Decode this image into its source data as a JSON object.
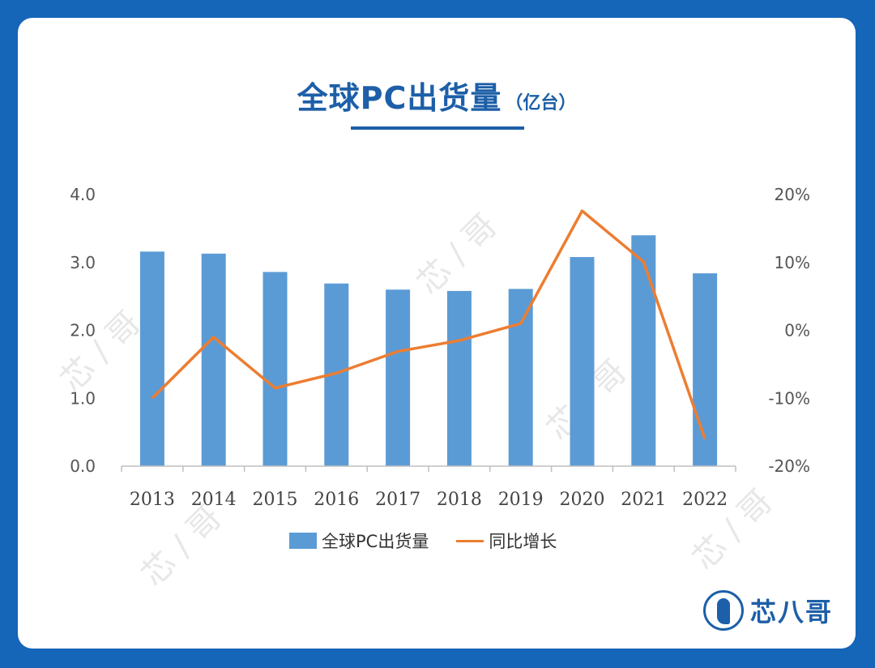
{
  "title": {
    "main": "全球PC出货量",
    "unit": "（亿台）"
  },
  "logo": {
    "text": "芯八哥"
  },
  "watermark": "芯八哥",
  "colors": {
    "background": "#1565b8",
    "bar": "#5b9bd5",
    "line": "#ed7d31",
    "title": "#1d5fa8"
  },
  "chart_data": {
    "type": "bar",
    "categories": [
      "2013",
      "2014",
      "2015",
      "2016",
      "2017",
      "2018",
      "2019",
      "2020",
      "2021",
      "2022"
    ],
    "series": [
      {
        "name": "全球PC出货量",
        "type": "bar",
        "axis": "left",
        "values": [
          3.16,
          3.13,
          2.86,
          2.69,
          2.6,
          2.58,
          2.61,
          3.08,
          3.4,
          2.84
        ]
      },
      {
        "name": "同比增长",
        "type": "line",
        "axis": "right",
        "values": [
          -10.0,
          -1.0,
          -8.5,
          -6.3,
          -3.1,
          -1.5,
          1.0,
          17.6,
          10.1,
          -16.0
        ]
      }
    ],
    "y_left": {
      "ylim": [
        0,
        4
      ],
      "ticks": [
        "0.0",
        "1.0",
        "2.0",
        "3.0",
        "4.0"
      ]
    },
    "y_right": {
      "ylim": [
        -20,
        20
      ],
      "ticks": [
        "-20%",
        "-10%",
        "0%",
        "10%",
        "20%"
      ]
    },
    "legend": [
      "全球PC出货量",
      "同比增长"
    ],
    "legend_position": "bottom",
    "grid": false
  }
}
